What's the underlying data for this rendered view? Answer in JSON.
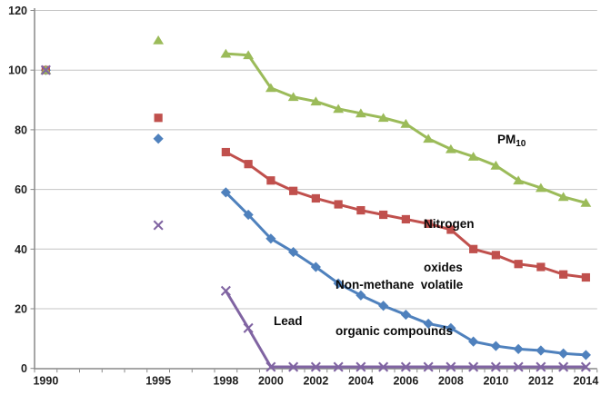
{
  "chart_data": {
    "type": "line",
    "title": "",
    "x": [
      1990,
      1995,
      1998,
      1999,
      2000,
      2001,
      2002,
      2003,
      2004,
      2005,
      2006,
      2007,
      2008,
      2009,
      2010,
      2011,
      2012,
      2013,
      2014
    ],
    "series": [
      {
        "name": "PM10",
        "marker": "triangle",
        "color": "#9BBB59",
        "values": [
          100,
          110,
          105.5,
          105,
          94,
          91,
          89.5,
          87,
          85.5,
          84,
          82,
          77,
          73.5,
          71,
          68,
          63,
          60.5,
          57.5,
          55.5
        ]
      },
      {
        "name": "Nitrogen oxides",
        "marker": "square",
        "color": "#C0504D",
        "values": [
          100,
          84,
          72.5,
          68.5,
          63,
          59.5,
          57,
          55,
          53,
          51.5,
          50,
          48.5,
          46.5,
          40,
          38,
          35,
          34,
          31.5,
          30.5
        ]
      },
      {
        "name": "Non-methane volatile organic compounds",
        "marker": "diamond",
        "color": "#4F81BD",
        "values": [
          100,
          77,
          59,
          51.5,
          43.5,
          39,
          34,
          28.5,
          24.5,
          21,
          18,
          15,
          13.5,
          9,
          7.5,
          6.5,
          6,
          5,
          4.5
        ]
      },
      {
        "name": "Lead",
        "marker": "x",
        "color": "#8064A2",
        "values": [
          100,
          48,
          26,
          13.5,
          0.5,
          0.5,
          0.5,
          0.5,
          0.5,
          0.5,
          0.5,
          0.5,
          0.5,
          0.5,
          0.5,
          0.5,
          0.5,
          0.5,
          0.5
        ]
      }
    ],
    "line_connect_from_x": 1998,
    "draw_order": [
      2,
      1,
      0,
      3
    ],
    "xlabel": "",
    "ylabel": "",
    "x_axis": {
      "range": [
        1989.5,
        2015
      ],
      "labeled_years": [
        1990,
        1995,
        1998,
        2000,
        2002,
        2004,
        2006,
        2008,
        2010,
        2012,
        2014
      ],
      "minor_tick_step_years": 1
    },
    "y_axis": {
      "range": [
        0,
        120
      ],
      "ticks": [
        0,
        20,
        40,
        60,
        80,
        100,
        120
      ]
    },
    "grid": "horizontal",
    "legend_position": "inline-annotations"
  },
  "annotations": {
    "pm10": {
      "text": "PM",
      "subscript": "10"
    },
    "nitrogen_oxides": {
      "line1": "Nitrogen",
      "line2": "oxides"
    },
    "nmvoc": {
      "line1": "Non-methane  volatile",
      "line2": "organic compounds"
    },
    "lead": {
      "text": "Lead"
    }
  },
  "colors": {
    "background": "#FFFFFF",
    "gridline": "#C4C4C4",
    "axis": "#898989",
    "tick_text": "#1F1F1F",
    "pm10": "#9BBB59",
    "nitrogen_oxides": "#C0504D",
    "nmvoc": "#4F81BD",
    "lead": "#8064A2"
  }
}
